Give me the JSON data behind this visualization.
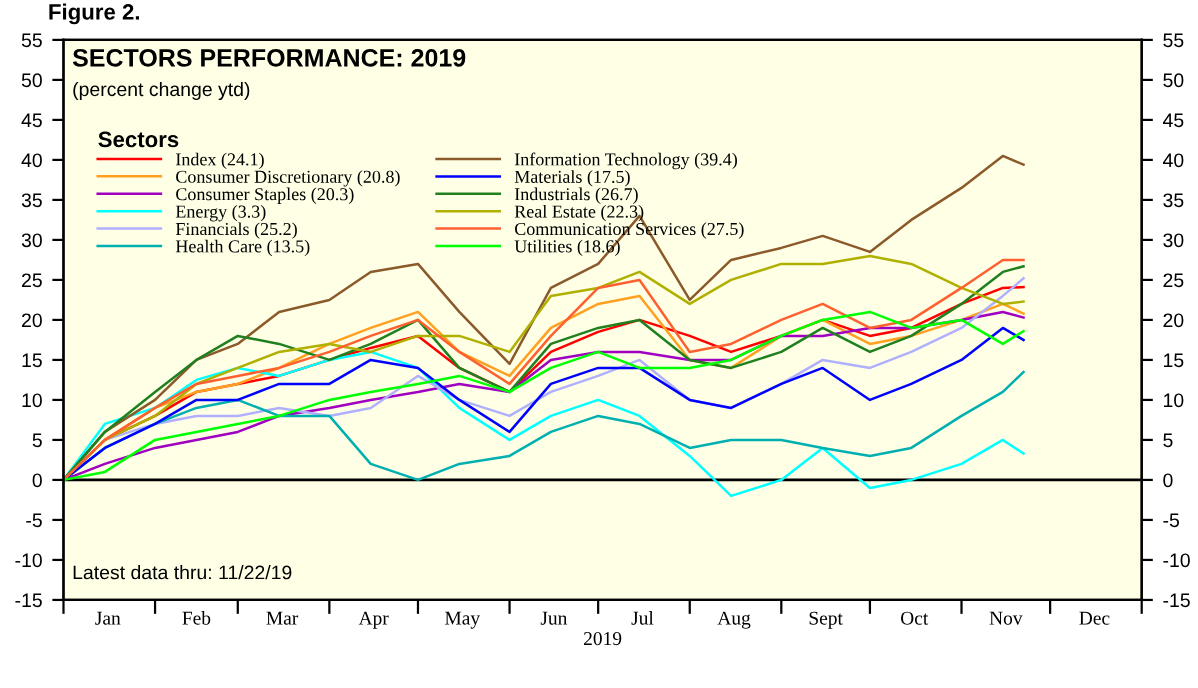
{
  "chart_data": {
    "type": "line",
    "title": "SECTORS PERFORMANCE: 2019",
    "subtitle": "(percent change ytd)",
    "xlabel": "2019",
    "legend_title": "Sectors",
    "legend": "top left",
    "grid": false,
    "annotations": [
      "Figure 2.",
      "Latest data thru: 11/22/19"
    ],
    "x": [
      "2019-01-01",
      "2019-01-15",
      "2019-02-01",
      "2019-02-15",
      "2019-03-01",
      "2019-03-15",
      "2019-04-01",
      "2019-04-15",
      "2019-05-01",
      "2019-05-15",
      "2019-06-01",
      "2019-06-15",
      "2019-07-01",
      "2019-07-15",
      "2019-08-01",
      "2019-08-15",
      "2019-09-01",
      "2019-09-15",
      "2019-10-01",
      "2019-10-15",
      "2019-11-01",
      "2019-11-15",
      "2019-11-22"
    ],
    "xlim": [
      "2019-01-01",
      "2020-01-01"
    ],
    "xticks": [
      {
        "value": "2019-01-01",
        "label": null
      },
      {
        "value": "2019-01-16",
        "label": "Jan"
      },
      {
        "value": "2019-02-01",
        "label": null
      },
      {
        "value": "2019-02-15",
        "label": "Feb"
      },
      {
        "value": "2019-03-01",
        "label": null
      },
      {
        "value": "2019-03-16",
        "label": "Mar"
      },
      {
        "value": "2019-04-01",
        "label": null
      },
      {
        "value": "2019-04-16",
        "label": "Apr"
      },
      {
        "value": "2019-05-01",
        "label": null
      },
      {
        "value": "2019-05-16",
        "label": "May"
      },
      {
        "value": "2019-06-01",
        "label": null
      },
      {
        "value": "2019-06-16",
        "label": "Jun"
      },
      {
        "value": "2019-07-01",
        "label": null
      },
      {
        "value": "2019-07-16",
        "label": "Jul"
      },
      {
        "value": "2019-08-01",
        "label": null
      },
      {
        "value": "2019-08-16",
        "label": "Aug"
      },
      {
        "value": "2019-09-01",
        "label": null
      },
      {
        "value": "2019-09-16",
        "label": "Sept"
      },
      {
        "value": "2019-10-01",
        "label": null
      },
      {
        "value": "2019-10-16",
        "label": "Oct"
      },
      {
        "value": "2019-11-01",
        "label": null
      },
      {
        "value": "2019-11-16",
        "label": "Nov"
      },
      {
        "value": "2019-12-01",
        "label": null
      },
      {
        "value": "2019-12-16",
        "label": "Dec"
      },
      {
        "value": "2020-01-01",
        "label": null
      }
    ],
    "ylim": [
      -15,
      55
    ],
    "yticks": [
      -15,
      -10,
      -5,
      0,
      5,
      10,
      15,
      20,
      25,
      30,
      35,
      40,
      45,
      50,
      55
    ],
    "y2lim": [
      -15,
      55
    ],
    "y2ticks": [
      -15,
      -10,
      -5,
      0,
      5,
      10,
      15,
      20,
      25,
      30,
      35,
      40,
      45,
      50,
      55
    ],
    "ref_lines": [
      {
        "axis": "y",
        "value": 0,
        "color": "#000000"
      }
    ],
    "series": [
      {
        "name": "Index (24.1)",
        "color": "#ff0000",
        "values": [
          0,
          5,
          8,
          11,
          12,
          13,
          15,
          16.5,
          18,
          14,
          11,
          16,
          18.5,
          20,
          18,
          16,
          18,
          20,
          18,
          19,
          22,
          24,
          24.1
        ]
      },
      {
        "name": "Consumer Discretionary (20.8)",
        "color": "#ffa020",
        "values": [
          0,
          5,
          9,
          11,
          12,
          14,
          17,
          19,
          21,
          16,
          13,
          19,
          22,
          23,
          15,
          14,
          18,
          20,
          17,
          18,
          20,
          22,
          20.8
        ]
      },
      {
        "name": "Consumer Staples (20.3)",
        "color": "#a000c0",
        "values": [
          0,
          2,
          4,
          5,
          6,
          8,
          9,
          10,
          11,
          12,
          11,
          15,
          16,
          16,
          15,
          15,
          18,
          18,
          19,
          19,
          20,
          21,
          20.3
        ]
      },
      {
        "name": "Energy (3.3)",
        "color": "#00ffff",
        "values": [
          0,
          7,
          9,
          12.5,
          14,
          13,
          15,
          16,
          14,
          9,
          5,
          8,
          10,
          8,
          3,
          -2,
          0,
          4,
          -1,
          0,
          2,
          5,
          3.3
        ]
      },
      {
        "name": "Financials (25.2)",
        "color": "#b0b0ff",
        "values": [
          0,
          5,
          7,
          8,
          8,
          9,
          8,
          9,
          13,
          10,
          8,
          11,
          13,
          15,
          10,
          9,
          12,
          15,
          14,
          16,
          19,
          23,
          25.2
        ]
      },
      {
        "name": "Health Care (13.5)",
        "color": "#00b0b0",
        "values": [
          0,
          4,
          7,
          9,
          10,
          8,
          8,
          2,
          0,
          2,
          3,
          6,
          8,
          7,
          4,
          5,
          5,
          4,
          3,
          4,
          8,
          11,
          13.5
        ]
      },
      {
        "name": "Information Technology (39.4)",
        "color": "#8b5a2b",
        "values": [
          0,
          6,
          10,
          15,
          17,
          21,
          22.5,
          26,
          27,
          21,
          14.5,
          24,
          27,
          33,
          22.5,
          27.5,
          29,
          30.5,
          28.5,
          32.5,
          36.5,
          40.5,
          39.4
        ]
      },
      {
        "name": "Materials (17.5)",
        "color": "#0000ff",
        "values": [
          0,
          4,
          7,
          10,
          10,
          12,
          12,
          15,
          14,
          10,
          6,
          12,
          14,
          14,
          10,
          9,
          12,
          14,
          10,
          12,
          15,
          19,
          17.5
        ]
      },
      {
        "name": "Industrials (26.7)",
        "color": "#208020",
        "values": [
          0,
          6,
          11,
          15,
          18,
          17,
          15,
          17,
          20,
          14,
          11,
          17,
          19,
          20,
          15,
          14,
          16,
          19,
          16,
          18,
          22,
          26,
          26.7
        ]
      },
      {
        "name": "Real Estate (22.3)",
        "color": "#b0b000",
        "values": [
          0,
          5,
          8,
          12,
          14,
          16,
          17,
          16,
          18,
          18,
          16,
          23,
          24,
          26,
          22,
          25,
          27,
          27,
          28,
          27,
          24,
          22,
          22.3
        ]
      },
      {
        "name": "Communication Services (27.5)",
        "color": "#ff6030",
        "values": [
          0,
          5,
          9,
          12,
          13,
          14,
          16,
          18,
          20,
          16,
          12,
          18,
          24,
          25,
          16,
          17,
          20,
          22,
          19,
          20,
          24,
          27.5,
          27.5
        ]
      },
      {
        "name": "Utilities (18.6)",
        "color": "#00ff00",
        "values": [
          0,
          1,
          5,
          6,
          7,
          8,
          10,
          11,
          12,
          13,
          11,
          14,
          16,
          14,
          14,
          15,
          18,
          20,
          21,
          19,
          20,
          17,
          18.6
        ]
      }
    ]
  }
}
